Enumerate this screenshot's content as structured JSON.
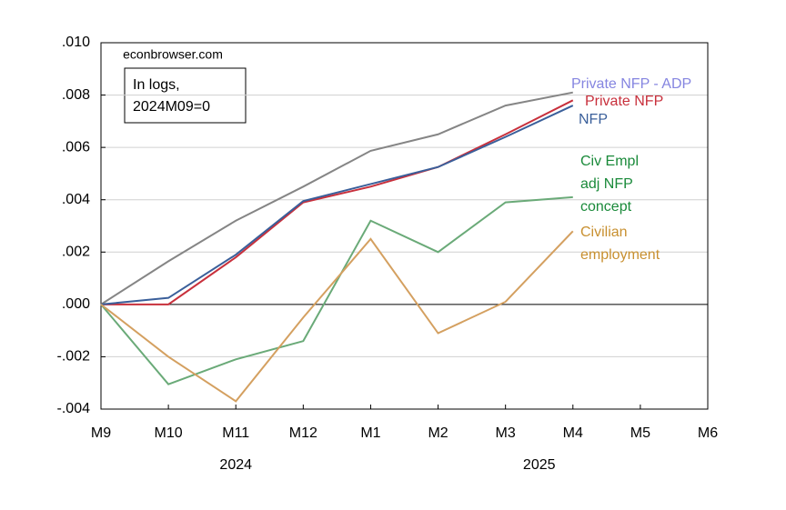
{
  "chart_data": {
    "type": "line",
    "annotations": [
      "econbrowser.com",
      "In logs,",
      "2024M09=0"
    ],
    "categories": [
      "M9",
      "M10",
      "M11",
      "M12",
      "M1",
      "M2",
      "M3",
      "M4",
      "M5",
      "M6"
    ],
    "years": [
      "2024",
      "2025"
    ],
    "series": [
      {
        "name": [
          "Private NFP - ADP"
        ],
        "color": "#858585",
        "label_color": "#8585e0",
        "values": [
          0,
          0.00165,
          0.0032,
          0.0045,
          0.00587,
          0.0065,
          0.0076,
          0.0081,
          null,
          null
        ]
      },
      {
        "name": [
          "Private NFP"
        ],
        "color": "#c8303c",
        "values": [
          0,
          0.0,
          0.0018,
          0.0039,
          0.0045,
          0.00525,
          0.0065,
          0.0078,
          null,
          null
        ]
      },
      {
        "name": [
          "NFP"
        ],
        "color": "#3a5f9a",
        "values": [
          0,
          0.00025,
          0.0019,
          0.00395,
          0.0046,
          0.00525,
          0.0064,
          0.0076,
          null,
          null
        ]
      },
      {
        "name": [
          "Civ Empl",
          "adj NFP",
          "concept"
        ],
        "color": "#6aaa78",
        "label_color": "#1a8a3a",
        "values": [
          0,
          -0.00305,
          -0.0021,
          -0.0014,
          0.0032,
          0.002,
          0.0039,
          0.0041,
          null,
          null
        ]
      },
      {
        "name": [
          "Civilian",
          "employment"
        ],
        "color": "#d4a060",
        "label_color": "#c89030",
        "values": [
          0,
          -0.002,
          -0.0037,
          -0.0005,
          0.0025,
          -0.0011,
          0.0001,
          0.0028,
          null,
          null
        ]
      }
    ],
    "ylim": [
      -0.004,
      0.01
    ],
    "yticks": [
      {
        "value": -0.004,
        "label": "-.004"
      },
      {
        "value": -0.002,
        "label": "-.002"
      },
      {
        "value": 0,
        "label": ".000"
      },
      {
        "value": 0.002,
        "label": ".002"
      },
      {
        "value": 0.004,
        "label": ".004"
      },
      {
        "value": 0.006,
        "label": ".006"
      },
      {
        "value": 0.008,
        "label": ".008"
      },
      {
        "value": 0.01,
        "label": ".010"
      }
    ],
    "grid": true
  }
}
